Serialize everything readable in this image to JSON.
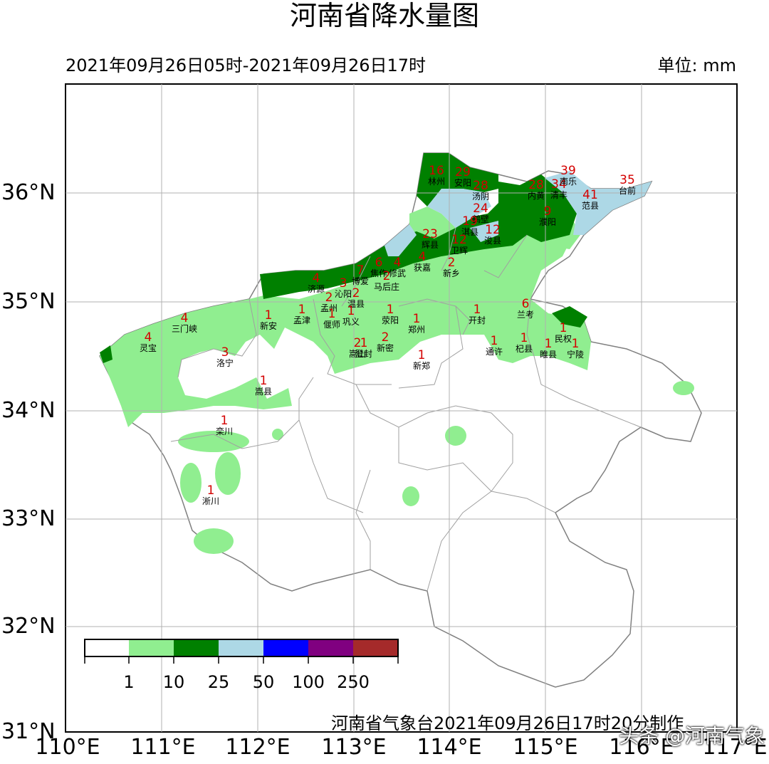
{
  "title": "河南省降水量图",
  "period": "2021年09月26日05时-2021年09月26日17时",
  "unit": "单位: mm",
  "footer": "河南省气象台2021年09月26日17时20分制作",
  "watermark": "头条 @河南气象",
  "lat_labels": [
    "36°N",
    "35°N",
    "34°N",
    "33°N",
    "32°N",
    "31°N"
  ],
  "lon_labels": [
    "110°E",
    "111°E",
    "112°E",
    "113°E",
    "114°E",
    "115°E",
    "116°E",
    "117°E"
  ],
  "legend": {
    "colors": [
      "#ffffff",
      "#90ee90",
      "#008000",
      "#add8e6",
      "#0000ff",
      "#800080",
      "#a52a2a"
    ],
    "labels": [
      "1",
      "10",
      "25",
      "50",
      "100",
      "250"
    ]
  },
  "stations": [
    {
      "name": "林州",
      "value": "16"
    },
    {
      "name": "安阳",
      "value": "29"
    },
    {
      "name": "汤阴",
      "value": "28"
    },
    {
      "name": "内黄",
      "value": "28"
    },
    {
      "name": "清丰",
      "value": "34"
    },
    {
      "name": "南乐",
      "value": "39"
    },
    {
      "name": "台前",
      "value": "35"
    },
    {
      "name": "范县",
      "value": "41"
    },
    {
      "name": "濮阳",
      "value": "9"
    },
    {
      "name": "鹤壁",
      "value": "24"
    },
    {
      "name": "淇县",
      "value": "19"
    },
    {
      "name": "浚县",
      "value": "12"
    },
    {
      "name": "辉县",
      "value": "23"
    },
    {
      "name": "卫辉",
      "value": "12"
    },
    {
      "name": "获嘉",
      "value": "4"
    },
    {
      "name": "新乡",
      "value": "2"
    },
    {
      "name": "修武",
      "value": "4"
    },
    {
      "name": "焦作",
      "value": "6"
    },
    {
      "name": "马后庄",
      "value": "2"
    },
    {
      "name": "博爱",
      "value": "7"
    },
    {
      "name": "济源",
      "value": "4"
    },
    {
      "name": "沁阳",
      "value": "3"
    },
    {
      "name": "温县",
      "value": "2"
    },
    {
      "name": "孟州",
      "value": "2"
    },
    {
      "name": "孟津",
      "value": "1"
    },
    {
      "name": "偃师",
      "value": "1"
    },
    {
      "name": "巩义",
      "value": "1"
    },
    {
      "name": "荥阳",
      "value": "1"
    },
    {
      "name": "郑州",
      "value": "1"
    },
    {
      "name": "新安",
      "value": "1"
    },
    {
      "name": "三门峡",
      "value": "4"
    },
    {
      "name": "灵宝",
      "value": "4"
    },
    {
      "name": "洛宁",
      "value": "3"
    },
    {
      "name": "嵩县",
      "value": "1"
    },
    {
      "name": "栾川",
      "value": "1"
    },
    {
      "name": "淅川",
      "value": "1"
    },
    {
      "name": "嵩山",
      "value": "2"
    },
    {
      "name": "登封",
      "value": "1"
    },
    {
      "name": "新密",
      "value": "2"
    },
    {
      "name": "新郑",
      "value": "1"
    },
    {
      "name": "开封",
      "value": "1"
    },
    {
      "name": "兰考",
      "value": "6"
    },
    {
      "name": "通许",
      "value": "1"
    },
    {
      "name": "杞县",
      "value": "1"
    },
    {
      "name": "睢县",
      "value": "1"
    },
    {
      "name": "民权",
      "value": "1"
    },
    {
      "name": "宁陵",
      "value": "1"
    }
  ]
}
